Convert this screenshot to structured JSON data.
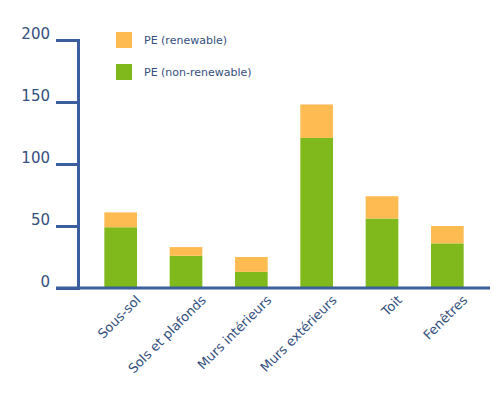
{
  "chart_data": {
    "type": "bar",
    "stacked": true,
    "categories": [
      "Sous-sol",
      "Sols et plafonds",
      "Murs intérieurs",
      "Murs extérieurs",
      "Toit",
      "Fenêtres"
    ],
    "series": [
      {
        "name": "PE (non-renewable)",
        "color": "#80b91c",
        "values": [
          49,
          26,
          13,
          121,
          56,
          36
        ]
      },
      {
        "name": "PE (renewable)",
        "color": "#fdbb52",
        "values": [
          12,
          7,
          12,
          27,
          18,
          14
        ]
      }
    ],
    "ylim": [
      0,
      200
    ],
    "yticks": [
      0,
      50,
      100,
      150,
      200
    ],
    "grid": false,
    "legend": "top-left"
  }
}
